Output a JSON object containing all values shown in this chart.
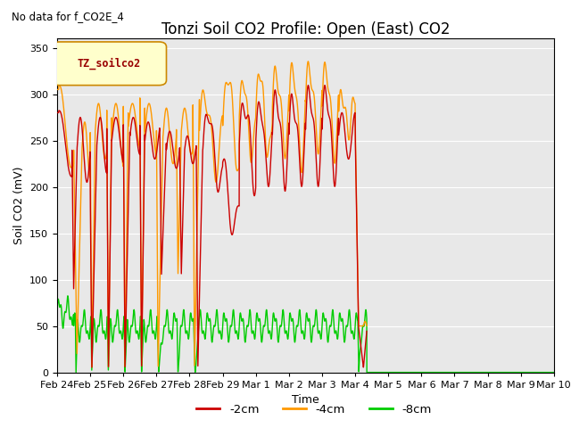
{
  "title": "Tonzi Soil CO2 Profile: Open (East) CO2",
  "subtitle": "No data for f_CO2E_4",
  "ylabel": "Soil CO2 (mV)",
  "xlabel": "Time",
  "ylim": [
    0,
    360
  ],
  "yticks": [
    0,
    50,
    100,
    150,
    200,
    250,
    300,
    350
  ],
  "legend_label": "TZ_soilco2",
  "series_labels": [
    "-2cm",
    "-4cm",
    "-8cm"
  ],
  "series_colors": [
    "#cc0000",
    "#ff9900",
    "#00cc00"
  ],
  "background_color": "#ffffff",
  "plot_bg_color": "#e8e8e8",
  "grid_color": "#ffffff",
  "xtick_labels": [
    "Feb 24",
    "Feb 25",
    "Feb 26",
    "Feb 27",
    "Feb 28",
    "Feb 29",
    "Mar 1",
    "Mar 2",
    "Mar 3",
    "Mar 4",
    "Mar 5",
    "Mar 6",
    "Mar 7",
    "Mar 8",
    "Mar 9",
    "Mar 10"
  ],
  "title_fontsize": 12,
  "axis_fontsize": 9,
  "tick_fontsize": 8,
  "legend_box_color": "#ffffcc",
  "legend_box_edge": "#cc8800",
  "legend_text_color": "#990000"
}
